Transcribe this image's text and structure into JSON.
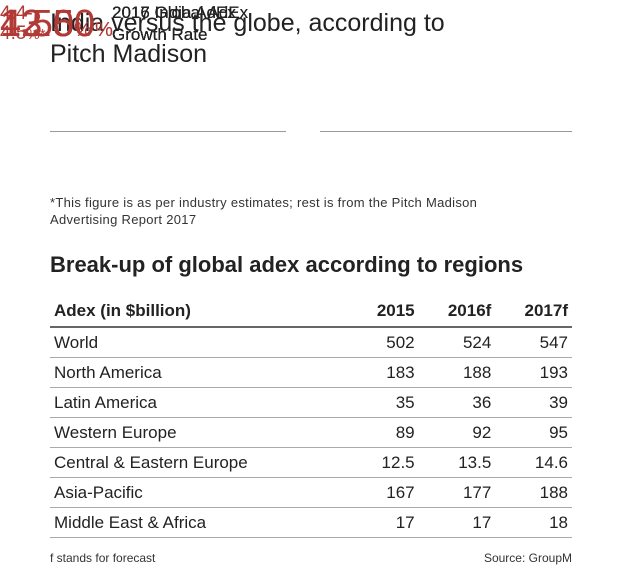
{
  "title": "India versus the globe, according to Pitch Madison",
  "stats": [
    {
      "value": "4.50",
      "unit": "%",
      "label": [
        "2016 Global AdEx",
        "Growth Rate"
      ]
    },
    {
      "value": "4.4-4.5",
      "unit": "%*",
      "label": [
        "2017 Global AdEx",
        "Growth Rate"
      ]
    },
    {
      "value": "12.50",
      "unit": "%",
      "label": [
        "2016 India AdEx",
        "Growth Rate"
      ]
    },
    {
      "value": "13.50",
      "unit": "%",
      "label": [
        "2017 India AdEx",
        "Growth Rate"
      ]
    }
  ],
  "footnote": "*This figure is as per industry estimates; rest is from the Pitch Madison Advertising Report 2017",
  "table": {
    "title": "Break-up of global adex according to regions",
    "header": [
      "Adex (in $billion)",
      "2015",
      "2016f",
      "2017f"
    ],
    "rows": [
      [
        "World",
        502,
        524,
        547
      ],
      [
        "North America",
        183,
        188,
        193
      ],
      [
        "Latin America",
        35,
        36,
        39
      ],
      [
        "Western Europe",
        89,
        92,
        95
      ],
      [
        "Central & Eastern Europe",
        12.5,
        13.5,
        14.6
      ],
      [
        "Asia-Pacific",
        167,
        177,
        188
      ],
      [
        "Middle East & Africa",
        17,
        17,
        18
      ]
    ]
  },
  "footer": {
    "note": "f stands for forecast",
    "source": "Source: GroupM"
  }
}
